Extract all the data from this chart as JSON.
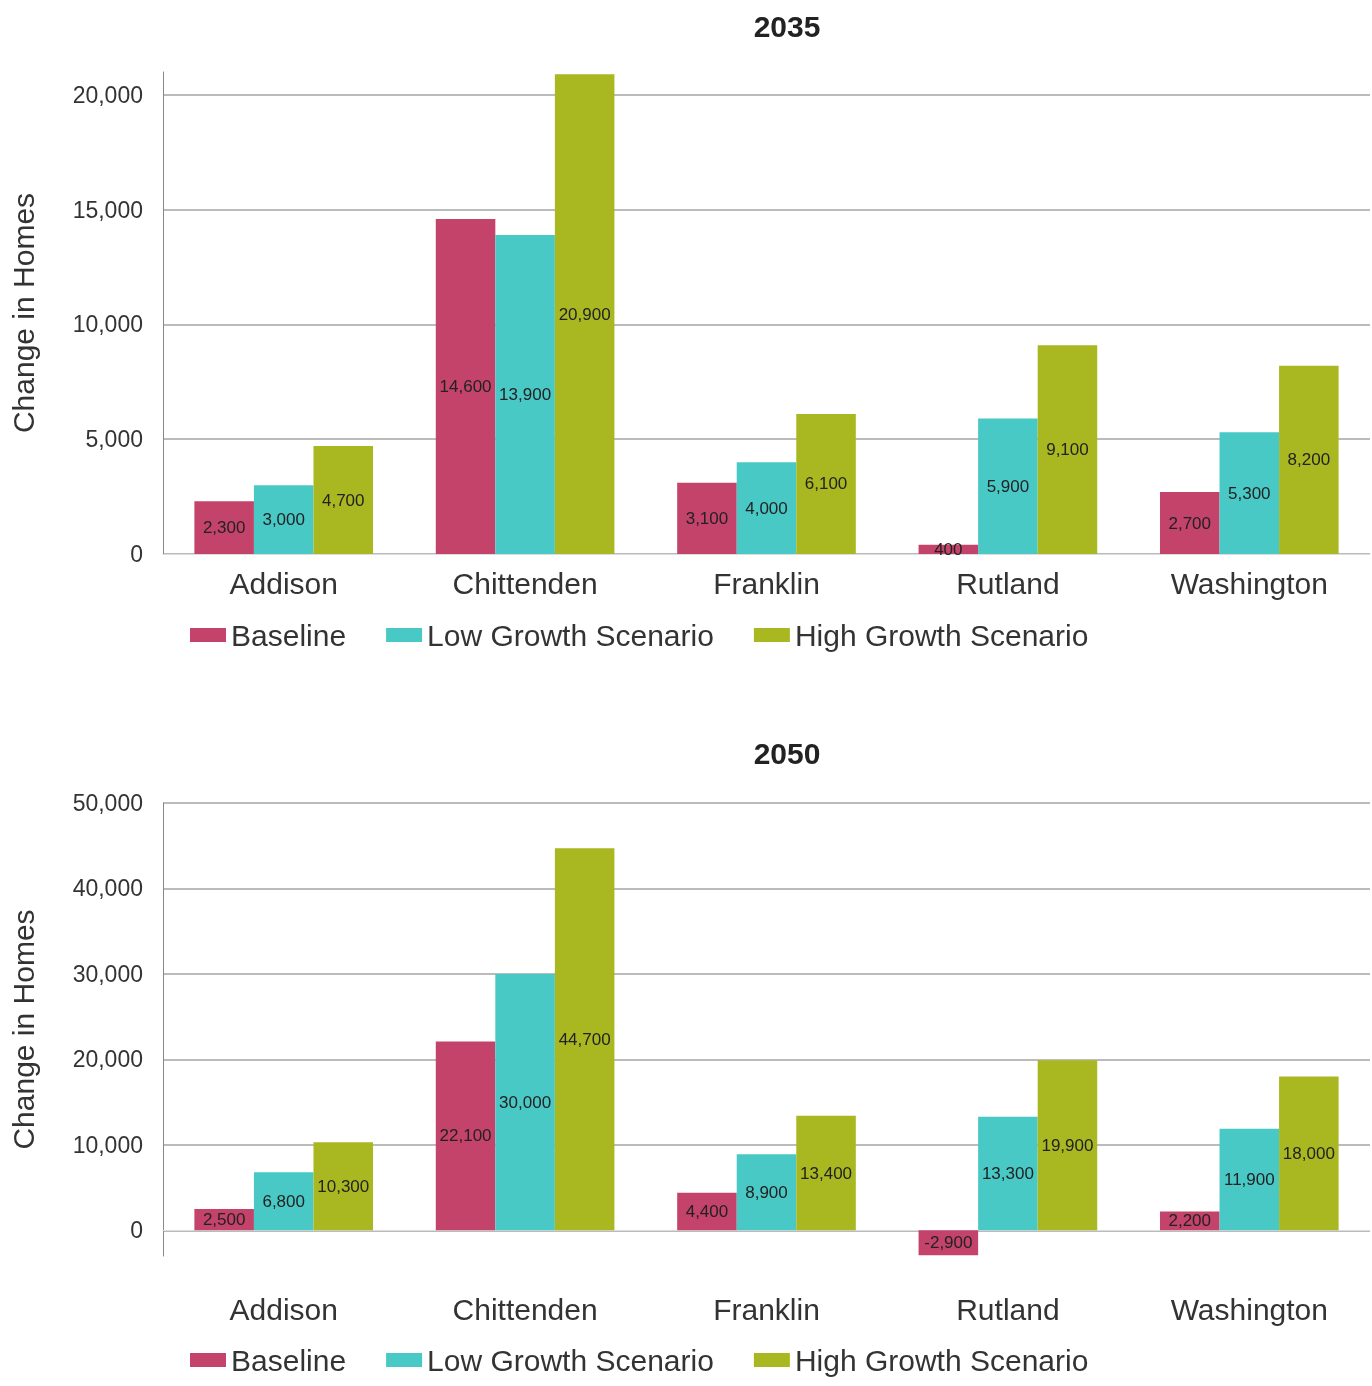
{
  "chart_data": [
    {
      "type": "bar",
      "title": "2035",
      "ylabel": "Change in Homes",
      "categories": [
        "Addison",
        "Chittenden",
        "Franklin",
        "Rutland",
        "Washington"
      ],
      "series": [
        {
          "name": "Baseline",
          "color": "#c4436a",
          "values": [
            2300,
            14600,
            3100,
            400,
            2700
          ],
          "value_labels": [
            "2,300",
            "14,600",
            "3,100",
            "400",
            "2,700"
          ]
        },
        {
          "name": "Low Growth Scenario",
          "color": "#48c9c5",
          "values": [
            3000,
            13900,
            4000,
            5900,
            5300
          ],
          "value_labels": [
            "3,000",
            "13,900",
            "4,000",
            "5,900",
            "5,300"
          ]
        },
        {
          "name": "High Growth Scenario",
          "color": "#a9b820",
          "values": [
            4700,
            20900,
            6100,
            9100,
            8200
          ],
          "value_labels": [
            "4,700",
            "20,900",
            "6,100",
            "9,100",
            "8,200"
          ]
        }
      ],
      "ylim": [
        0,
        21000
      ],
      "yticks": [
        0,
        {
          "value": 5000,
          "label": "5,000"
        },
        {
          "value": 10000,
          "label": "10,000"
        },
        {
          "value": 15000,
          "label": "15,000"
        },
        {
          "value": 20000,
          "label": "20,000"
        }
      ],
      "grid": "y",
      "legend": "bottom"
    },
    {
      "type": "bar",
      "title": "2050",
      "ylabel": "Change in Homes",
      "categories": [
        "Addison",
        "Chittenden",
        "Franklin",
        "Rutland",
        "Washington"
      ],
      "series": [
        {
          "name": "Baseline",
          "color": "#c4436a",
          "values": [
            2500,
            22100,
            4400,
            -2900,
            2200
          ],
          "value_labels": [
            "2,500",
            "22,100",
            "4,400",
            "-2,900",
            "2,200"
          ]
        },
        {
          "name": "Low Growth Scenario",
          "color": "#48c9c5",
          "values": [
            6800,
            30000,
            8900,
            13300,
            11900
          ],
          "value_labels": [
            "6,800",
            "30,000",
            "8,900",
            "13,300",
            "11,900"
          ]
        },
        {
          "name": "High Growth Scenario",
          "color": "#a9b820",
          "values": [
            10300,
            44700,
            13400,
            19900,
            18000
          ],
          "value_labels": [
            "10,300",
            "44,700",
            "13,400",
            "19,900",
            "18,000"
          ]
        }
      ],
      "ylim": [
        -3000,
        50000
      ],
      "yticks": [
        0,
        {
          "value": 10000,
          "label": "10,000"
        },
        {
          "value": 20000,
          "label": "20,000"
        },
        {
          "value": 30000,
          "label": "30,000"
        },
        {
          "value": 40000,
          "label": "40,000"
        },
        {
          "value": 50000,
          "label": "50,000"
        }
      ],
      "grid": "y",
      "legend": "bottom"
    }
  ]
}
